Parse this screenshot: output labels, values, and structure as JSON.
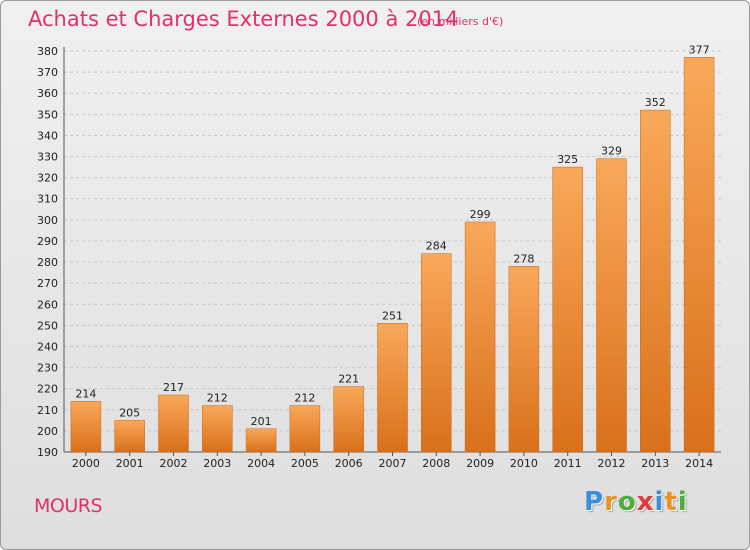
{
  "header": {
    "title": "Achats et Charges Externes 2000 à 2014",
    "unit": "(en milliers d'€)"
  },
  "footer": {
    "place": "MOURS",
    "logo_letters": [
      "P",
      "r",
      "o",
      "x",
      "i",
      "t",
      "i"
    ],
    "logo_colors": [
      "#3a8fd8",
      "#e8902a",
      "#4bae3e",
      "#e03a3a",
      "#3a8fd8",
      "#e8902a",
      "#4bae3e"
    ]
  },
  "colors": {
    "bar_light": "#f9a85a",
    "bar_dark": "#d9701a",
    "grid": "#c8c8c8",
    "text": "#222222",
    "accent": "#e0306e"
  },
  "chart_data": {
    "type": "bar",
    "categories": [
      "2000",
      "2001",
      "2002",
      "2003",
      "2004",
      "2005",
      "2006",
      "2007",
      "2008",
      "2009",
      "2010",
      "2011",
      "2012",
      "2013",
      "2014"
    ],
    "values": [
      214,
      205,
      217,
      212,
      201,
      212,
      221,
      251,
      284,
      299,
      278,
      325,
      329,
      352,
      377
    ],
    "data_labels": [
      "214",
      "205",
      "217",
      "212",
      "201",
      "212",
      "221",
      "251",
      "284",
      "299",
      "278",
      "325",
      "329",
      "352",
      "377"
    ],
    "ylim": [
      190,
      380
    ],
    "yticks": [
      "190",
      "200",
      "210",
      "220",
      "230",
      "240",
      "250",
      "260",
      "270",
      "280",
      "290",
      "300",
      "310",
      "320",
      "330",
      "340",
      "350",
      "360",
      "370",
      "380"
    ],
    "grid": true
  }
}
